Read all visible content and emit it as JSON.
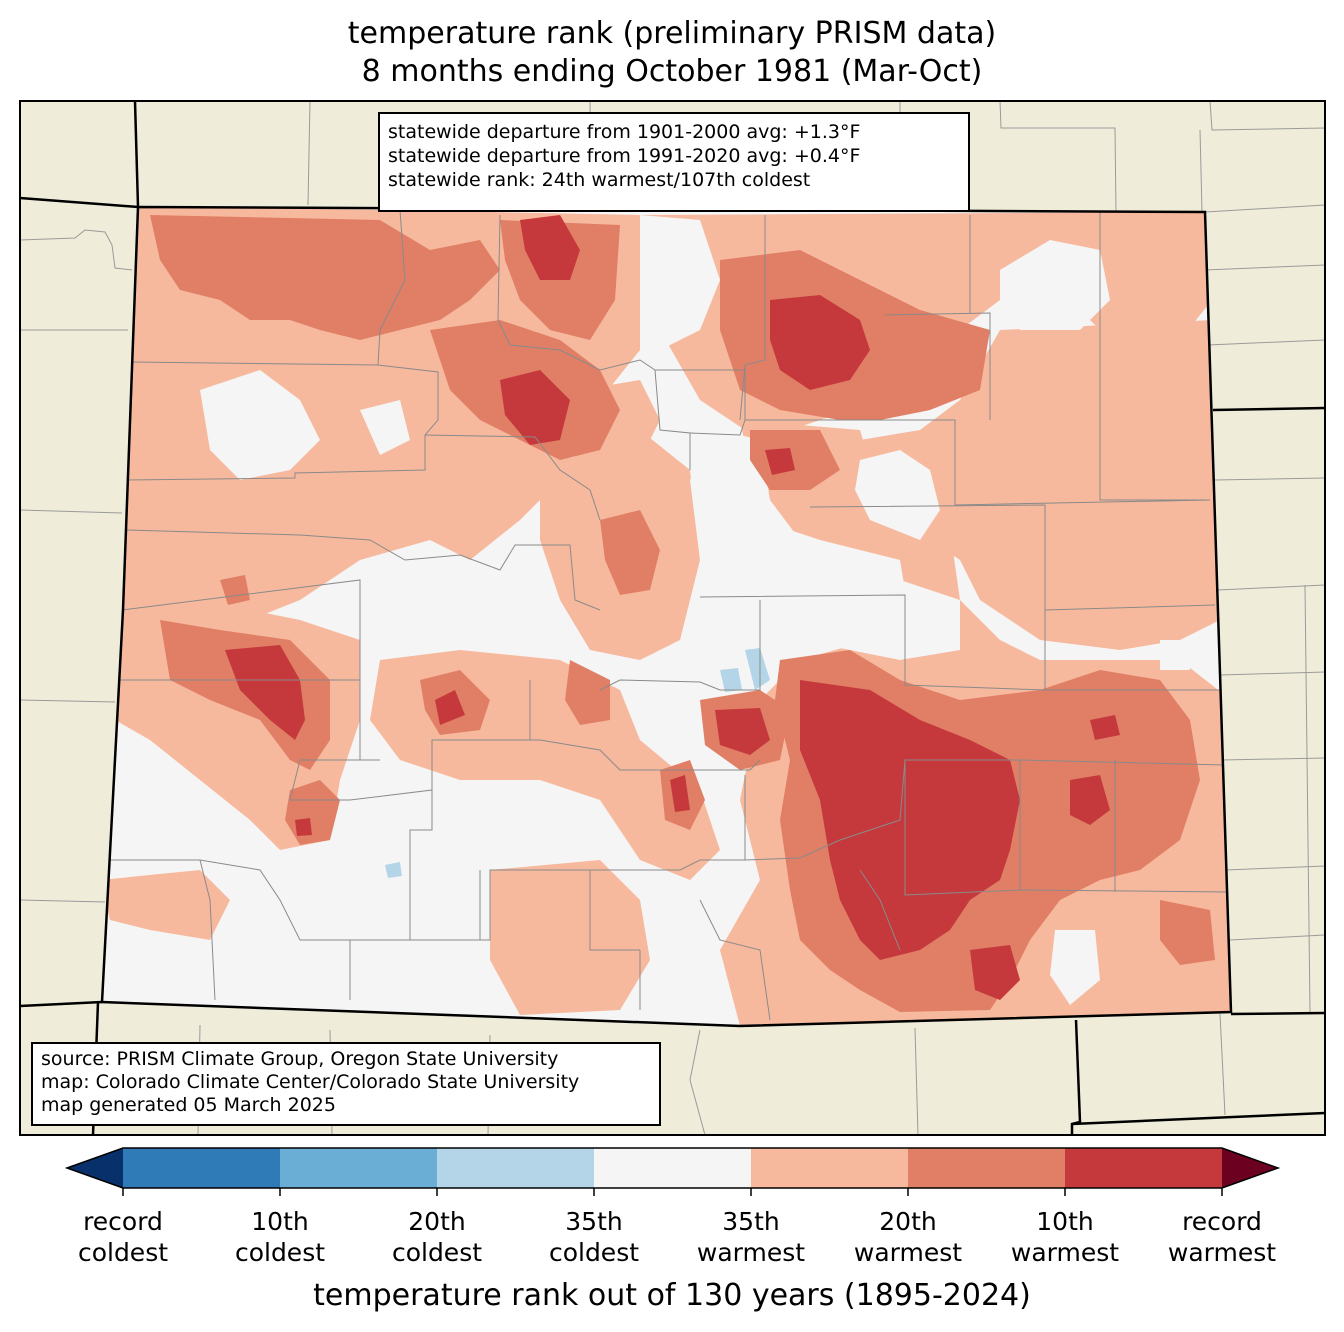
{
  "title": {
    "line1": "temperature rank (preliminary PRISM data)",
    "line2": "8 months ending October 1981 (Mar-Oct)"
  },
  "stats": {
    "line1": "statewide departure from 1901-2000 avg: +1.3°F",
    "line2": "statewide departure from 1991-2020 avg: +0.4°F",
    "line3": "statewide rank: 24th warmest/107th coldest"
  },
  "source": {
    "line1": "source: PRISM Climate Group, Oregon State University",
    "line2": "map: Colorado Climate Center/Colorado State University",
    "line3": "map generated 05 March 2025"
  },
  "colorbar": {
    "title": "temperature rank out of 130 years (1895-2024)",
    "ticks": [
      {
        "l1": "record",
        "l2": "coldest"
      },
      {
        "l1": "10th",
        "l2": "coldest"
      },
      {
        "l1": "20th",
        "l2": "coldest"
      },
      {
        "l1": "35th",
        "l2": "coldest"
      },
      {
        "l1": "35th",
        "l2": "warmest"
      },
      {
        "l1": "20th",
        "l2": "warmest"
      },
      {
        "l1": "10th",
        "l2": "warmest"
      },
      {
        "l1": "record",
        "l2": "warmest"
      }
    ],
    "colors": {
      "below_record_coldest": "#08306b",
      "record_to_10th_coldest": "#2f7bb8",
      "10th_to_20th_coldest": "#6aaed6",
      "20th_to_35th_coldest": "#b3d5e7",
      "near_normal": "#f5f5f5",
      "35th_to_20th_warmest": "#f7b99d",
      "20th_to_10th_warmest": "#e07f66",
      "10th_to_record_warmest": "#c5393c",
      "above_record_warmest": "#6b0020"
    }
  },
  "map": {
    "land_color": "#efedd9",
    "state": "Colorado"
  }
}
